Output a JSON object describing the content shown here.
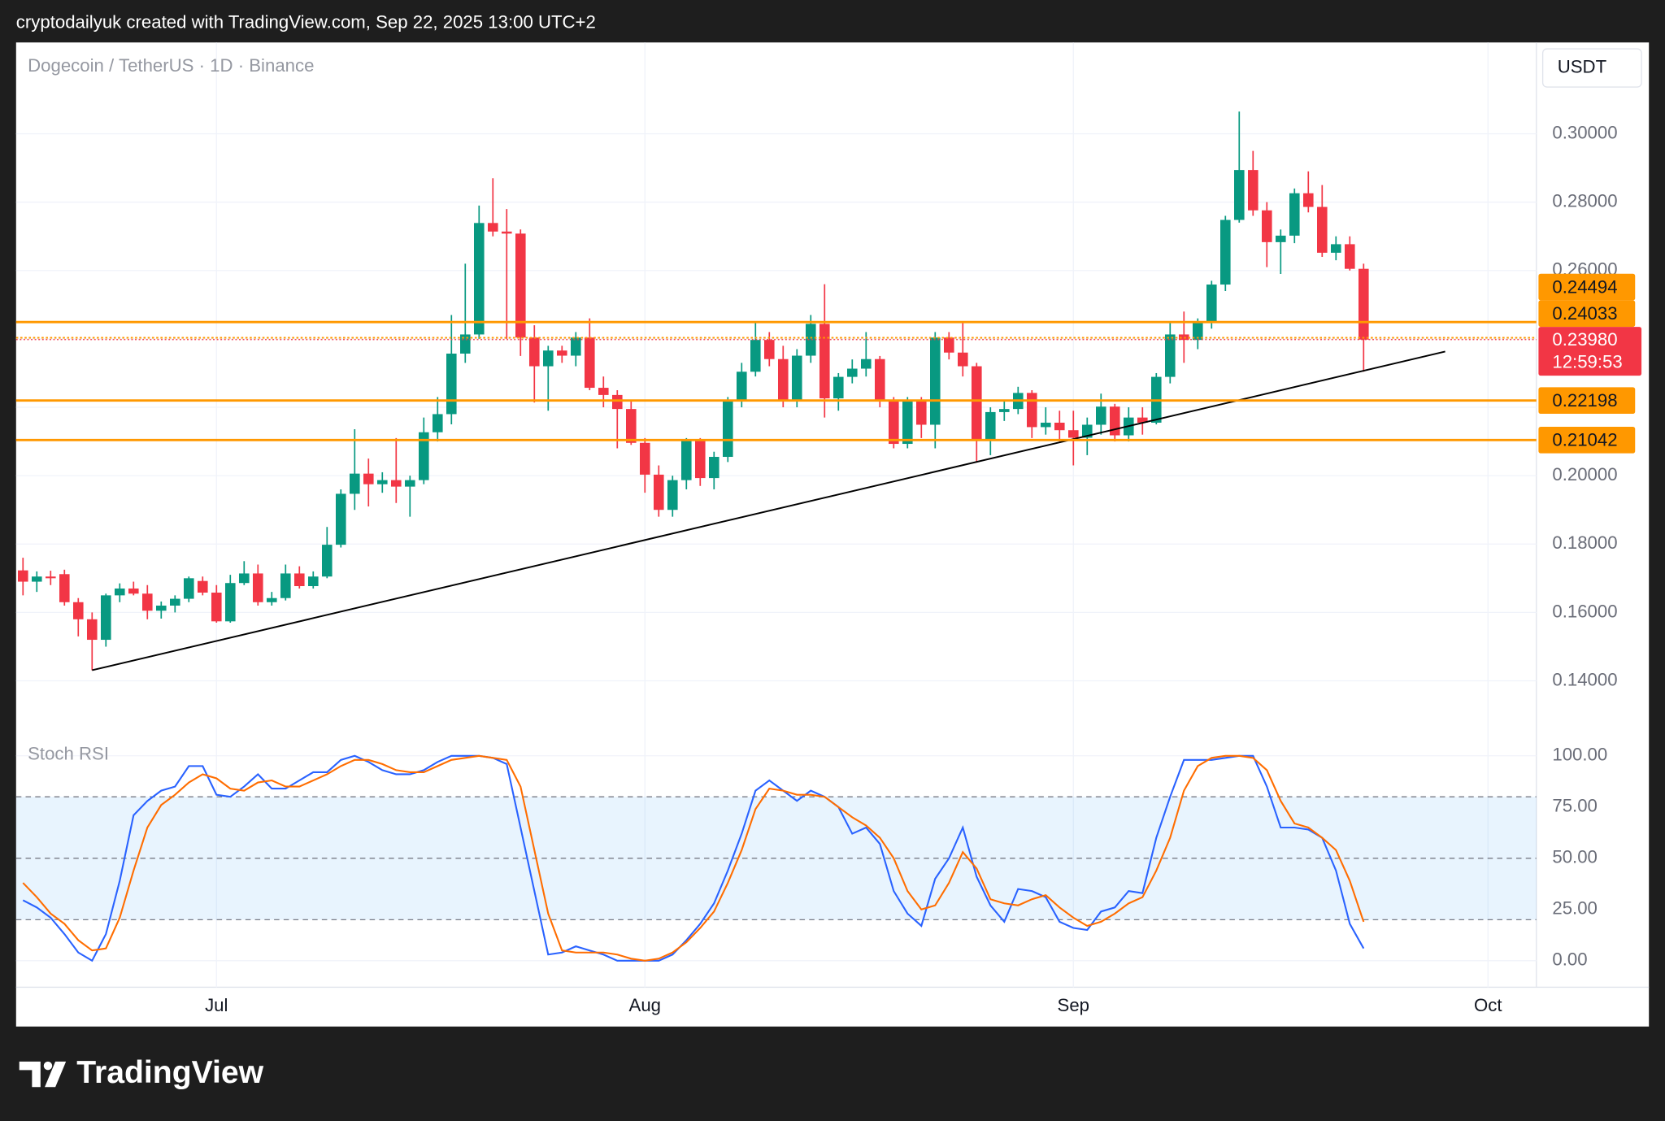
{
  "header": "cryptodailyuk created with TradingView.com, Sep 22, 2025 13:00 UTC+2",
  "brand": "TradingView",
  "chart_data": [
    {
      "type": "candlestick",
      "title": "Dogecoin / TetherUS · 1D · Binance",
      "currency": "USDT",
      "categories": [
        null,
        null,
        null,
        null,
        null,
        null,
        null,
        null,
        null,
        null,
        null,
        null,
        null,
        null,
        "Jul",
        null,
        null,
        null,
        null,
        null,
        null,
        null,
        null,
        null,
        null,
        null,
        null,
        null,
        null,
        null,
        null,
        null,
        null,
        null,
        null,
        null,
        null,
        null,
        null,
        null,
        null,
        null,
        null,
        null,
        null,
        "Aug",
        null,
        null,
        null,
        null,
        null,
        null,
        null,
        null,
        null,
        null,
        null,
        null,
        null,
        null,
        null,
        null,
        null,
        null,
        null,
        null,
        null,
        null,
        null,
        null,
        null,
        null,
        null,
        null,
        null,
        null,
        "Sep",
        null,
        null,
        null,
        null,
        null,
        null,
        null,
        null,
        null,
        null,
        null,
        null,
        null,
        null,
        null,
        null,
        null,
        null,
        null,
        null,
        null,
        null,
        null,
        null,
        null,
        null,
        null,
        null,
        null,
        "Oct",
        null,
        null,
        null
      ],
      "open": [
        0.1723,
        0.169,
        0.1705,
        0.1712,
        0.163,
        0.158,
        0.152,
        0.165,
        0.167,
        0.1655,
        0.1605,
        0.162,
        0.164,
        0.1692,
        0.1658,
        0.1574,
        0.1686,
        0.1714,
        0.163,
        0.1642,
        0.1714,
        0.1677,
        0.1705,
        0.1798,
        0.1947,
        0.2006,
        0.1975,
        0.1987,
        0.1968,
        0.1987,
        0.2127,
        0.218,
        0.2357,
        0.2413,
        0.2739,
        0.2714,
        0.2708,
        0.2404,
        0.232,
        0.2366,
        0.2351,
        0.2404,
        0.2257,
        0.2236,
        0.2195,
        0.2096,
        0.2003,
        0.19,
        0.1987,
        0.2102,
        0.1993,
        0.2055,
        0.2217,
        0.2304,
        0.2397,
        0.2341,
        0.2217,
        0.2351,
        0.2444,
        0.2226,
        0.2289,
        0.2313,
        0.2341,
        0.2217,
        0.2093,
        0.2217,
        0.2149,
        0.2404,
        0.236,
        0.232,
        0.2102,
        0.2186,
        0.2195,
        0.2242,
        0.2142,
        0.2155,
        0.2133,
        0.2111,
        0.2149,
        0.2202,
        0.2118,
        0.217,
        0.2155,
        0.2289,
        0.2413,
        0.2397,
        0.245,
        0.2559,
        0.2748,
        0.2894,
        0.2776,
        0.2683,
        0.2702,
        0.2826,
        0.2786,
        0.2652,
        0.2677,
        0.2605,
        null,
        null,
        null,
        null,
        null,
        null,
        null,
        null,
        null,
        null,
        null,
        null
      ],
      "high": [
        0.176,
        0.172,
        0.1722,
        0.1725,
        0.1642,
        0.16,
        0.1655,
        0.1685,
        0.169,
        0.168,
        0.1632,
        0.165,
        0.1705,
        0.1705,
        0.168,
        0.171,
        0.175,
        0.174,
        0.166,
        0.174,
        0.1735,
        0.172,
        0.185,
        0.196,
        0.2136,
        0.205,
        0.201,
        0.211,
        0.2,
        0.217,
        0.223,
        0.247,
        0.262,
        0.279,
        0.287,
        0.278,
        0.272,
        0.244,
        0.238,
        0.238,
        0.242,
        0.246,
        0.229,
        0.225,
        0.222,
        0.211,
        0.203,
        0.2,
        0.211,
        0.211,
        0.207,
        0.223,
        0.233,
        0.245,
        0.242,
        0.238,
        0.237,
        0.247,
        0.256,
        0.23,
        0.234,
        0.242,
        0.235,
        0.223,
        0.223,
        0.223,
        0.242,
        0.242,
        0.245,
        0.233,
        0.22,
        0.222,
        0.226,
        0.225,
        0.22,
        0.219,
        0.219,
        0.217,
        0.224,
        0.221,
        0.22,
        0.22,
        0.23,
        0.245,
        0.248,
        0.246,
        0.257,
        0.276,
        0.3065,
        0.295,
        0.28,
        0.272,
        0.284,
        0.289,
        0.285,
        0.27,
        0.27,
        0.262,
        null,
        null,
        null,
        null,
        null,
        null,
        null,
        null,
        null,
        null,
        null,
        null
      ],
      "low": [
        0.165,
        0.166,
        0.168,
        0.162,
        0.153,
        0.1431,
        0.15,
        0.163,
        0.165,
        0.158,
        0.1582,
        0.16,
        0.163,
        0.165,
        0.157,
        0.157,
        0.168,
        0.162,
        0.162,
        0.1635,
        0.167,
        0.167,
        0.17,
        0.179,
        0.19,
        0.191,
        0.195,
        0.192,
        0.188,
        0.1975,
        0.21,
        0.215,
        0.233,
        0.24,
        0.27,
        0.24,
        0.235,
        0.2214,
        0.219,
        0.233,
        0.232,
        0.225,
        0.22,
        0.208,
        0.209,
        0.195,
        0.188,
        0.188,
        0.196,
        0.197,
        0.196,
        0.204,
        0.22,
        0.229,
        0.232,
        0.22,
        0.22,
        0.233,
        0.217,
        0.219,
        0.227,
        0.229,
        0.22,
        0.208,
        0.208,
        0.211,
        0.208,
        0.234,
        0.229,
        0.204,
        0.206,
        0.216,
        0.218,
        0.211,
        0.212,
        0.21,
        0.203,
        0.206,
        0.212,
        0.21,
        0.21,
        0.212,
        0.215,
        0.227,
        0.233,
        0.237,
        0.243,
        0.254,
        0.274,
        0.276,
        0.261,
        0.259,
        0.268,
        0.277,
        0.264,
        0.263,
        0.26,
        0.2304,
        null,
        null,
        null,
        null,
        null,
        null,
        null,
        null,
        null,
        null,
        null,
        null
      ],
      "close": [
        0.169,
        0.1705,
        0.17,
        0.163,
        0.158,
        0.152,
        0.165,
        0.167,
        0.1655,
        0.1605,
        0.162,
        0.164,
        0.17,
        0.1658,
        0.1574,
        0.1686,
        0.1714,
        0.163,
        0.1642,
        0.1714,
        0.1677,
        0.1705,
        0.1798,
        0.1947,
        0.2006,
        0.1975,
        0.1987,
        0.1968,
        0.1987,
        0.2127,
        0.218,
        0.2357,
        0.2413,
        0.2739,
        0.2714,
        0.2708,
        0.2404,
        0.232,
        0.2366,
        0.2351,
        0.2404,
        0.2257,
        0.2236,
        0.2195,
        0.2096,
        0.2003,
        0.19,
        0.1987,
        0.2102,
        0.1993,
        0.2055,
        0.2217,
        0.2304,
        0.2397,
        0.2341,
        0.2217,
        0.2351,
        0.2444,
        0.2226,
        0.2289,
        0.2313,
        0.2341,
        0.2217,
        0.2093,
        0.2217,
        0.2149,
        0.2404,
        0.236,
        0.232,
        0.2102,
        0.2186,
        0.2195,
        0.2242,
        0.2142,
        0.2155,
        0.2133,
        0.2111,
        0.2149,
        0.2202,
        0.2118,
        0.217,
        0.2155,
        0.2289,
        0.2413,
        0.2397,
        0.245,
        0.2559,
        0.2748,
        0.2894,
        0.2776,
        0.2683,
        0.2702,
        0.2826,
        0.2786,
        0.2652,
        0.2677,
        0.2605,
        0.2398,
        null,
        null,
        null,
        null,
        null,
        null,
        null,
        null,
        null,
        null,
        null,
        null
      ],
      "up_color": "#089981",
      "down_color": "#f23645",
      "ylim": [
        0.128,
        0.3267
      ],
      "yticks": [
        {
          "value": 0.14,
          "label": "0.14000"
        },
        {
          "value": 0.16,
          "label": "0.16000"
        },
        {
          "value": 0.18,
          "label": "0.18000"
        },
        {
          "value": 0.2,
          "label": "0.20000"
        },
        {
          "value": 0.22,
          "label": "0.22000"
        },
        {
          "value": 0.24,
          "label": "0.24000"
        },
        {
          "value": 0.26,
          "label": "0.26000"
        },
        {
          "value": 0.28,
          "label": "0.28000"
        },
        {
          "value": 0.3,
          "label": "0.30000"
        }
      ],
      "grid": true,
      "levels": [
        0.24494,
        0.24033,
        0.22198,
        0.21042
      ],
      "level_styles": [
        "solid",
        "dotted",
        "solid",
        "solid"
      ],
      "level_color": "#ff9800",
      "trendline": {
        "x": [
          5,
          102.9
        ],
        "values": [
          0.1431,
          0.2363
        ],
        "color": "#000000"
      },
      "last_price": {
        "value": 0.2398,
        "label": "0.23980"
      },
      "countdown": "12:59:53"
    },
    {
      "type": "line",
      "title": "Stoch RSI",
      "ylim": [
        0,
        100
      ],
      "yticks": [
        {
          "value": 0,
          "label": "0.00"
        },
        {
          "value": 25,
          "label": "25.00"
        },
        {
          "value": 50,
          "label": "50.00"
        },
        {
          "value": 75,
          "label": "75.00"
        },
        {
          "value": 100,
          "label": "100.00"
        }
      ],
      "bands": {
        "upper": 80,
        "middle": 50,
        "lower": 20
      },
      "band_color": "#2196f3",
      "series": [
        {
          "color": "#2962ff",
          "values": [
            29.5,
            26,
            21,
            13,
            4,
            0,
            13,
            39,
            71,
            78,
            83,
            85,
            95,
            95,
            81,
            80,
            85,
            91,
            84,
            84,
            88,
            92,
            92,
            98,
            100,
            97,
            93,
            91,
            91,
            93,
            97,
            100,
            100,
            100,
            99,
            96,
            65,
            34,
            3,
            4,
            7,
            5,
            3,
            0,
            0,
            0,
            0,
            3,
            10,
            18,
            28,
            44,
            62,
            83,
            88,
            83,
            78,
            83,
            80,
            75,
            62,
            65,
            57,
            34,
            23,
            17,
            40,
            50,
            65,
            41,
            27,
            19,
            35,
            34,
            31,
            19,
            16,
            15,
            24,
            26,
            34,
            33,
            60,
            80,
            98,
            98,
            98,
            99,
            100,
            100,
            85,
            65,
            65,
            64,
            60,
            44,
            18,
            6,
            null,
            null,
            null,
            null,
            null,
            null,
            null,
            null,
            null,
            null,
            null,
            null
          ]
        },
        {
          "color": "#ff6d00",
          "values": [
            38,
            31,
            23,
            18,
            10,
            5,
            6,
            21,
            44,
            65,
            76,
            81,
            87,
            91,
            89,
            84,
            83,
            87,
            88,
            85,
            85,
            88,
            91,
            95,
            98,
            98,
            96,
            93,
            92,
            92,
            95,
            98,
            99,
            100,
            99,
            98,
            85,
            54,
            23,
            5,
            4,
            4,
            4,
            3,
            1,
            0,
            1,
            4,
            9,
            16,
            24,
            38,
            54,
            74,
            84,
            83,
            81,
            81,
            80,
            75,
            70,
            66,
            60,
            50,
            34,
            25,
            27,
            38,
            53,
            45,
            30,
            28,
            27,
            30,
            32,
            26,
            21,
            17,
            19,
            23,
            28,
            31,
            44,
            60,
            83,
            95,
            99,
            100,
            100,
            99,
            93,
            78,
            67,
            65,
            60,
            54,
            39,
            19,
            null,
            null,
            null,
            null,
            null,
            null,
            null,
            null,
            null,
            null,
            null,
            null
          ]
        }
      ]
    }
  ]
}
